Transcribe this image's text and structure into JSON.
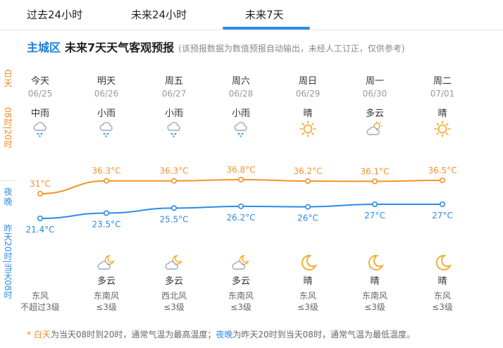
{
  "tabs": [
    {
      "label": "过去24小时"
    },
    {
      "label": "未来24小时"
    },
    {
      "label": "未来7天"
    }
  ],
  "active_tab": 2,
  "side": {
    "day_label": "白天",
    "day_sub": "08时|20时",
    "night_label": "夜晚",
    "night_sub": "昨天20时|当天08时"
  },
  "title": {
    "city": "主城区",
    "main": "未来7天天气客观预报",
    "note": "(该预报数据为数值预报自动输出，未经人工订正，仅供参考)"
  },
  "days": [
    {
      "name": "今天",
      "date": "06/25",
      "day_wx": "中雨",
      "day_icon": "cloud-rain-icon",
      "night_wx": "",
      "night_icon": "",
      "wind_dir": "东风",
      "wind_lvl": "不超过3级"
    },
    {
      "name": "明天",
      "date": "06/26",
      "day_wx": "小雨",
      "day_icon": "cloud-rain-icon",
      "night_wx": "多云",
      "night_icon": "moon-cloud-icon",
      "wind_dir": "东南风",
      "wind_lvl": "≤3级"
    },
    {
      "name": "周五",
      "date": "06/27",
      "day_wx": "小雨",
      "day_icon": "cloud-rain-icon",
      "night_wx": "多云",
      "night_icon": "moon-cloud-icon",
      "wind_dir": "西北风",
      "wind_lvl": "≤3级"
    },
    {
      "name": "周六",
      "date": "06/28",
      "day_wx": "小雨",
      "day_icon": "cloud-rain-icon",
      "night_wx": "多云",
      "night_icon": "moon-cloud-icon",
      "wind_dir": "东南风",
      "wind_lvl": "≤3级"
    },
    {
      "name": "周日",
      "date": "06/29",
      "day_wx": "晴",
      "day_icon": "sun-icon",
      "night_wx": "晴",
      "night_icon": "moon-icon",
      "wind_dir": "东风",
      "wind_lvl": "≤3级"
    },
    {
      "name": "周一",
      "date": "06/30",
      "day_wx": "多云",
      "day_icon": "sun-cloud-icon",
      "night_wx": "晴",
      "night_icon": "moon-icon",
      "wind_dir": "东南风",
      "wind_lvl": "≤3级"
    },
    {
      "name": "周二",
      "date": "07/01",
      "day_wx": "晴",
      "day_icon": "sun-icon",
      "night_wx": "晴",
      "night_icon": "moon-icon",
      "wind_dir": "东风",
      "wind_lvl": "≤3级"
    }
  ],
  "chart_data": {
    "type": "line",
    "categories": [
      "06/25",
      "06/26",
      "06/27",
      "06/28",
      "06/29",
      "06/30",
      "07/01"
    ],
    "series": [
      {
        "name": "白天",
        "values": [
          31,
          36.3,
          36.3,
          36.8,
          36.2,
          36.1,
          36.5
        ],
        "labels": [
          "31°C",
          "36.3°C",
          "36.3°C",
          "36.8°C",
          "36.2°C",
          "36.1°C",
          "36.5°C"
        ],
        "color": "#f5922a"
      },
      {
        "name": "夜晚",
        "values": [
          21.4,
          23.5,
          25.5,
          26.2,
          26,
          27,
          27
        ],
        "labels": [
          "21.4°C",
          "23.5°C",
          "25.5°C",
          "26.2°C",
          "26°C",
          "27°C",
          "27°C"
        ],
        "color": "#2b8be4"
      }
    ]
  },
  "footnote": {
    "star": "* ",
    "day_word": "白天",
    "day_text": "为当天08时到20时，通常气温为最高温度；",
    "night_word": "夜晚",
    "night_text": "为昨天20时到当天08时，通常气温为最低温度。"
  },
  "colors": {
    "accent": "#2f8be8",
    "day": "#f08a1e",
    "night": "#2b8be4"
  }
}
